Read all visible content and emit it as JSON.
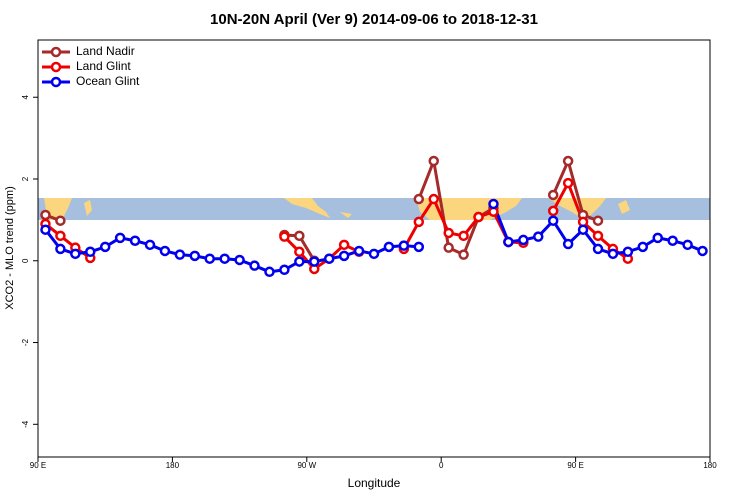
{
  "chart_data": {
    "type": "line",
    "title": "10N-20N April (Ver 9)   2014-09-06 to 2018-12-31",
    "x_label": "Longitude",
    "y_label": "XCO2 - MLO trend (ppm)",
    "x": [
      95,
      105,
      115,
      125,
      135,
      145,
      155,
      165,
      175,
      185,
      195,
      205,
      215,
      225,
      235,
      245,
      255,
      265,
      275,
      285,
      295,
      305,
      315,
      325,
      335,
      345,
      355,
      365,
      375,
      385,
      395,
      405,
      415,
      425,
      435,
      445,
      455,
      465,
      475,
      485,
      495,
      505,
      515,
      525,
      535
    ],
    "xlim": [
      90,
      540
    ],
    "xticks": [
      {
        "value": 90,
        "label": "90 E"
      },
      180,
      {
        "value": 270,
        "label": "90 W"
      },
      {
        "value": 360,
        "label": "0"
      },
      {
        "value": 450,
        "label": "90 E"
      },
      {
        "value": 540,
        "label": "180"
      }
    ],
    "ylim": [
      -4.8,
      5.4
    ],
    "yticks": [
      -4,
      -2,
      0,
      2,
      4
    ],
    "legend": "top-left",
    "series": [
      {
        "name": "Land Nadir",
        "color": "#a52a2a",
        "values": [
          1.12,
          0.98,
          null,
          null,
          null,
          null,
          null,
          null,
          null,
          null,
          null,
          null,
          null,
          null,
          null,
          null,
          0.63,
          0.61,
          0.0,
          null,
          null,
          null,
          null,
          null,
          null,
          1.51,
          2.44,
          0.32,
          0.15,
          1.07,
          1.29,
          0.46,
          null,
          null,
          1.61,
          2.44,
          1.12,
          0.98,
          null,
          null,
          null,
          null,
          null,
          null,
          null
        ]
      },
      {
        "name": "Land Glint",
        "color": "#ee0000",
        "values": [
          0.9,
          0.61,
          0.32,
          0.07,
          null,
          null,
          null,
          null,
          null,
          null,
          null,
          null,
          null,
          null,
          null,
          null,
          0.59,
          0.22,
          -0.2,
          0.05,
          0.39,
          0.22,
          null,
          null,
          0.29,
          0.95,
          1.51,
          0.68,
          0.61,
          1.07,
          1.2,
          0.46,
          0.44,
          null,
          1.22,
          1.9,
          0.95,
          0.61,
          0.29,
          0.05,
          null,
          null,
          null,
          null,
          null
        ]
      },
      {
        "name": "Ocean Glint",
        "color": "#0000ee",
        "values": [
          0.76,
          0.29,
          0.17,
          0.22,
          0.34,
          0.56,
          0.49,
          0.39,
          0.24,
          0.15,
          0.12,
          0.05,
          0.05,
          0.02,
          -0.12,
          -0.27,
          -0.22,
          -0.02,
          -0.02,
          0.05,
          0.12,
          0.24,
          0.17,
          0.34,
          0.37,
          0.34,
          null,
          null,
          null,
          null,
          1.39,
          0.46,
          0.51,
          0.59,
          0.98,
          0.41,
          0.76,
          0.29,
          0.17,
          0.22,
          0.34,
          0.56,
          0.49,
          0.39,
          0.24
        ]
      }
    ]
  }
}
